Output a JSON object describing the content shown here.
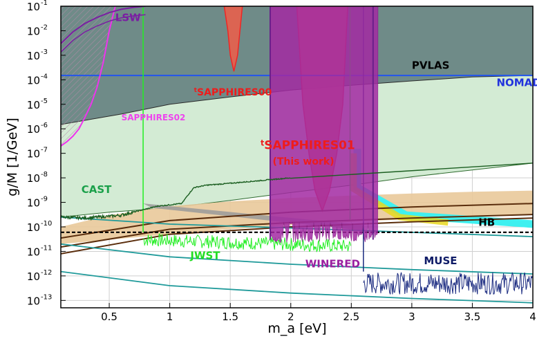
{
  "chart_data": {
    "type": "area",
    "title": "",
    "xlabel": "m_a [eV]",
    "ylabel": "g/M [1/GeV]",
    "x_scale": "linear",
    "y_scale": "log",
    "xlim": [
      0.1,
      4.0
    ],
    "ylim": [
      5e-14,
      0.1
    ],
    "grid": true,
    "x_ticks": [
      0.5,
      1,
      1.5,
      2,
      2.5,
      3,
      3.5,
      4
    ],
    "x_tick_labels": [
      "0.5",
      "1",
      "1.5",
      "2",
      "2.5",
      "3",
      "3.5",
      "4"
    ],
    "y_ticks": [
      1e-13,
      1e-12,
      1e-11,
      1e-10,
      1e-09,
      1e-08,
      1e-07,
      1e-06,
      1e-05,
      0.0001,
      0.001,
      0.01,
      0.1
    ],
    "y_tick_exponents": [
      "-13",
      "-12",
      "-11",
      "-10",
      "-9",
      "-8",
      "-7",
      "-6",
      "-5",
      "-4",
      "-3",
      "-2",
      "-1"
    ],
    "y_tick_base": "10",
    "colors": {
      "pvlas_fill": "#6f8b88",
      "green_fill": "#d3ebd4",
      "hb_band": "#e9c99a",
      "hb_line": "#000000",
      "model_lines": "#5a2d0c",
      "teal_lines": "#1f9a9a",
      "sapphires_red": "#ff1a1a",
      "sapphires01_fill": "#f26b5a",
      "sapphires00_fill": "#e8604d",
      "winered": "#8b1a8b",
      "muse": "#1a2a80",
      "jwst": "#22ee22",
      "cast": "#1b5e20",
      "nomad": "#2255ee",
      "lsw": "#7a1fa2",
      "sapphires02": "#ee33ee",
      "cyan": "#3ff0f0",
      "yellow": "#e8d820",
      "grey_band": "#9a9a9a"
    },
    "annotations": [
      {
        "id": "lsw",
        "text": "LSW",
        "color": "#7a1fa2",
        "x": 0.55,
        "y": 0.025
      },
      {
        "id": "pvlas",
        "text": "PVLAS",
        "color": "#000000",
        "x": 3.0,
        "y": 0.00028
      },
      {
        "id": "nomad",
        "text": "NOMAD",
        "color": "#2233dd",
        "x": 3.7,
        "y": 5.5e-05
      },
      {
        "id": "sapphires00",
        "text": "SAPPHIRES00",
        "sup": "t",
        "color": "#ee1c1c",
        "x": 1.2,
        "y": 2.3e-05
      },
      {
        "id": "sapphires02",
        "text": "SAPPHIRES02",
        "color": "#ee44ee",
        "x": 0.6,
        "y": 2.2e-06
      },
      {
        "id": "sapphires01",
        "text": "SAPPHIRES01",
        "sup": "t",
        "color": "#ee1c1c",
        "x": 1.75,
        "y": 1.5e-07
      },
      {
        "id": "thiswork",
        "text": "(This work)",
        "color": "#ee1c1c",
        "x": 1.85,
        "y": 3.5e-08
      },
      {
        "id": "cast",
        "text": "CAST",
        "color": "#1aa04a",
        "x": 0.27,
        "y": 2.4e-09
      },
      {
        "id": "hb",
        "text": "HB",
        "color": "#000000",
        "x": 3.55,
        "y": 1.1e-10
      },
      {
        "id": "muse",
        "text": "MUSE",
        "color": "#0d1a66",
        "x": 3.1,
        "y": 3e-12
      },
      {
        "id": "jwst",
        "text": "JWST",
        "color": "#22dd22",
        "x": 1.17,
        "y": 4.8e-12
      },
      {
        "id": "winered",
        "text": "WINERED",
        "color": "#9a1fa0",
        "x": 2.12,
        "y": 2.2e-12
      }
    ],
    "series": [
      {
        "name": "PVLAS",
        "kind": "region",
        "boundary_x": [
          0.1,
          0.6,
          1.0,
          1.5,
          2.0,
          2.5,
          3.0,
          3.5,
          4.0
        ],
        "boundary_y": [
          1.5e-06,
          4e-06,
          1e-05,
          2e-05,
          3.8e-05,
          6e-05,
          9e-05,
          0.00013,
          0.00015
        ]
      },
      {
        "name": "green region",
        "kind": "region",
        "boundary_x": [
          0.1,
          0.5,
          1.0,
          1.5,
          2.0,
          2.5,
          3.0,
          3.5,
          4.0
        ],
        "boundary_y": [
          2.5e-10,
          4e-10,
          6e-10,
          1.2e-09,
          2.5e-09,
          5e-09,
          1.1e-08,
          2.1e-08,
          4e-08
        ]
      },
      {
        "name": "NOMAD",
        "kind": "hline",
        "y": 0.00015
      },
      {
        "name": "HB",
        "kind": "hline-dashed",
        "y": 6e-11
      },
      {
        "name": "HB band",
        "kind": "band",
        "x": [
          0.1,
          0.5,
          1.0,
          1.5,
          2.0,
          2.5,
          3.0,
          3.5,
          4.0
        ],
        "lower": [
          2e-11,
          3e-11,
          5e-11,
          8e-11,
          1.2e-10,
          1.6e-10,
          2.1e-10,
          2.6e-10,
          3.2e-10
        ],
        "upper": [
          1e-10,
          3e-10,
          7e-10,
          1.1e-09,
          1.5e-09,
          1.9e-09,
          2.3e-09,
          2.7e-09,
          3e-09
        ]
      },
      {
        "name": "model line 1",
        "kind": "line",
        "x": [
          0.1,
          1.0,
          2.0,
          3.0,
          4.0
        ],
        "y": [
          3.5e-11,
          1.8e-10,
          4e-10,
          6.5e-10,
          9e-10
        ]
      },
      {
        "name": "model line 2",
        "kind": "line",
        "x": [
          0.1,
          1.0,
          2.0,
          3.0,
          4.0
        ],
        "y": [
          1.5e-11,
          8e-11,
          1.5e-10,
          2.3e-10,
          3.2e-10
        ]
      },
      {
        "name": "model line 3",
        "kind": "line",
        "x": [
          0.1,
          1.0,
          2.0,
          3.0,
          4.0
        ],
        "y": [
          8e-12,
          5e-11,
          1e-10,
          1.6e-10,
          2.3e-10
        ]
      },
      {
        "name": "teal line 1",
        "kind": "line",
        "x": [
          0.1,
          1.0,
          2.0,
          3.0,
          4.0
        ],
        "y": [
          2.5e-10,
          1.3e-10,
          9e-11,
          6e-11,
          4e-11
        ]
      },
      {
        "name": "teal line 2",
        "kind": "line",
        "x": [
          0.1,
          1.0,
          2.0,
          3.0,
          4.0
        ],
        "y": [
          2e-11,
          6e-12,
          3e-12,
          1.8e-12,
          1.2e-12
        ]
      },
      {
        "name": "teal line 3",
        "kind": "line",
        "x": [
          0.1,
          1.0,
          2.0,
          3.0,
          4.0
        ],
        "y": [
          1.5e-12,
          4e-13,
          2e-13,
          1.2e-13,
          8e-14
        ]
      },
      {
        "name": "tSAPPHIRES00",
        "kind": "dip",
        "x": [
          1.45,
          1.48,
          1.5,
          1.53,
          1.56,
          1.58,
          1.6
        ],
        "y": [
          0.1,
          0.01,
          0.001,
          0.00022,
          0.001,
          0.01,
          0.1
        ]
      },
      {
        "name": "tSAPPHIRES01",
        "kind": "dip",
        "x": [
          2.05,
          2.1,
          2.15,
          2.2,
          2.26,
          2.32,
          2.38,
          2.43,
          2.47
        ],
        "y": [
          0.1,
          1e-05,
          1e-07,
          3e-09,
          4.5e-10,
          3e-09,
          1e-07,
          1e-05,
          0.1
        ]
      },
      {
        "name": "SAPPHIRES02",
        "kind": "line",
        "x": [
          0.1,
          0.15,
          0.2,
          0.25,
          0.3,
          0.35,
          0.4,
          0.45,
          0.5,
          0.55
        ],
        "y": [
          2e-07,
          3e-07,
          5e-07,
          1e-06,
          3e-06,
          1e-05,
          5e-05,
          0.0005,
          0.01,
          0.1
        ]
      },
      {
        "name": "LSW",
        "kind": "line",
        "x": [
          0.1,
          0.2,
          0.3,
          0.4,
          0.5,
          0.6,
          0.7,
          0.8
        ],
        "y": [
          0.003,
          0.009,
          0.02,
          0.035,
          0.055,
          0.075,
          0.09,
          0.1
        ]
      },
      {
        "name": "WINERED",
        "kind": "region",
        "x_range": [
          1.83,
          2.72
        ],
        "top": 0.1,
        "floor": 2.2e-11
      },
      {
        "name": "MUSE",
        "kind": "noise",
        "x_range": [
          2.6,
          4.0
        ],
        "mean": 5e-13,
        "spread": 3.0
      },
      {
        "name": "JWST",
        "kind": "noise",
        "x_range": [
          0.78,
          2.5
        ],
        "mean": 3e-11,
        "spread": 2.0
      },
      {
        "name": "CAST",
        "kind": "line",
        "x": [
          0.1,
          0.3,
          0.5,
          0.6,
          0.7,
          0.9,
          1.1,
          1.15,
          1.2,
          1.3,
          1.5,
          2.0
        ],
        "y": [
          2.5e-10,
          2.3e-10,
          2.7e-10,
          3e-10,
          4e-10,
          7e-10,
          9e-10,
          2e-09,
          4e-09,
          5e-09,
          6e-09,
          1e-08
        ]
      }
    ]
  }
}
